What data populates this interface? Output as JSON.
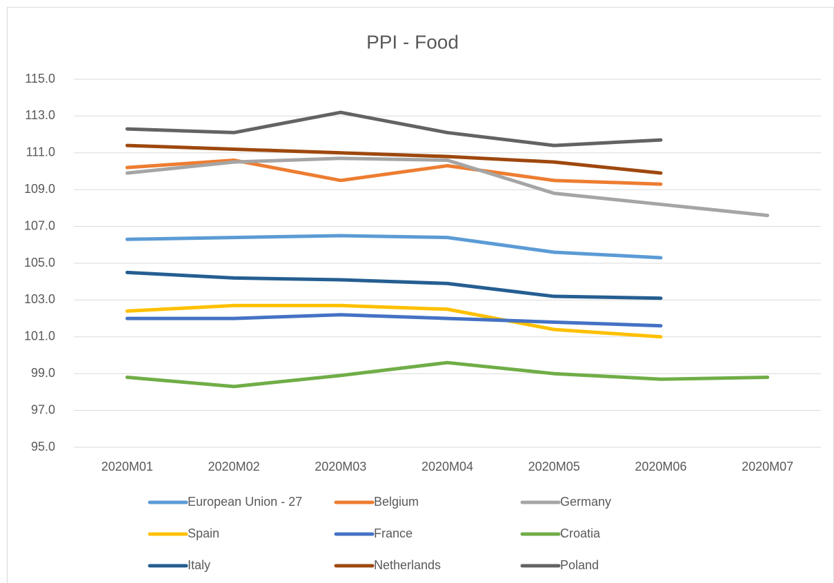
{
  "chart_data": {
    "type": "line",
    "title": "PPI - Food",
    "categories": [
      "2020M01",
      "2020M02",
      "2020M03",
      "2020M04",
      "2020M05",
      "2020M06",
      "2020M07"
    ],
    "ylim": [
      95,
      115
    ],
    "yticks": [
      {
        "value": 95,
        "label": "95.0"
      },
      {
        "value": 97,
        "label": "97.0"
      },
      {
        "value": 99,
        "label": "99.0"
      },
      {
        "value": 101,
        "label": "101.0"
      },
      {
        "value": 103,
        "label": "103.0"
      },
      {
        "value": 105,
        "label": "105.0"
      },
      {
        "value": 107,
        "label": "107.0"
      },
      {
        "value": 109,
        "label": "109.0"
      },
      {
        "value": 111,
        "label": "111.0"
      },
      {
        "value": 113,
        "label": "113.0"
      },
      {
        "value": 115,
        "label": "115.0"
      }
    ],
    "grid": true,
    "legend": "bottom",
    "series": [
      {
        "name": "European Union - 27",
        "color": "#5b9bd5",
        "values": [
          106.3,
          106.4,
          106.5,
          106.4,
          105.6,
          105.3,
          null
        ]
      },
      {
        "name": "Belgium",
        "color": "#ed7d31",
        "values": [
          110.2,
          110.6,
          109.5,
          110.3,
          109.5,
          109.3,
          null
        ]
      },
      {
        "name": "Germany",
        "color": "#a5a5a5",
        "values": [
          109.9,
          110.5,
          110.7,
          110.6,
          108.8,
          108.2,
          107.6
        ]
      },
      {
        "name": "Spain",
        "color": "#ffc000",
        "values": [
          102.4,
          102.7,
          102.7,
          102.5,
          101.4,
          101.0,
          null
        ]
      },
      {
        "name": "France",
        "color": "#4472c4",
        "values": [
          102.0,
          102.0,
          102.2,
          102.0,
          101.8,
          101.6,
          null
        ]
      },
      {
        "name": "Croatia",
        "color": "#70ad47",
        "values": [
          98.8,
          98.3,
          98.9,
          99.6,
          99.0,
          98.7,
          98.8
        ]
      },
      {
        "name": "Italy",
        "color": "#255e91",
        "values": [
          104.5,
          104.2,
          104.1,
          103.9,
          103.2,
          103.1,
          null
        ]
      },
      {
        "name": "Netherlands",
        "color": "#9e480e",
        "values": [
          111.4,
          111.2,
          111.0,
          110.8,
          110.5,
          109.9,
          null
        ]
      },
      {
        "name": "Poland",
        "color": "#636363",
        "values": [
          112.3,
          112.1,
          113.2,
          112.1,
          111.4,
          111.7,
          null
        ]
      }
    ]
  }
}
